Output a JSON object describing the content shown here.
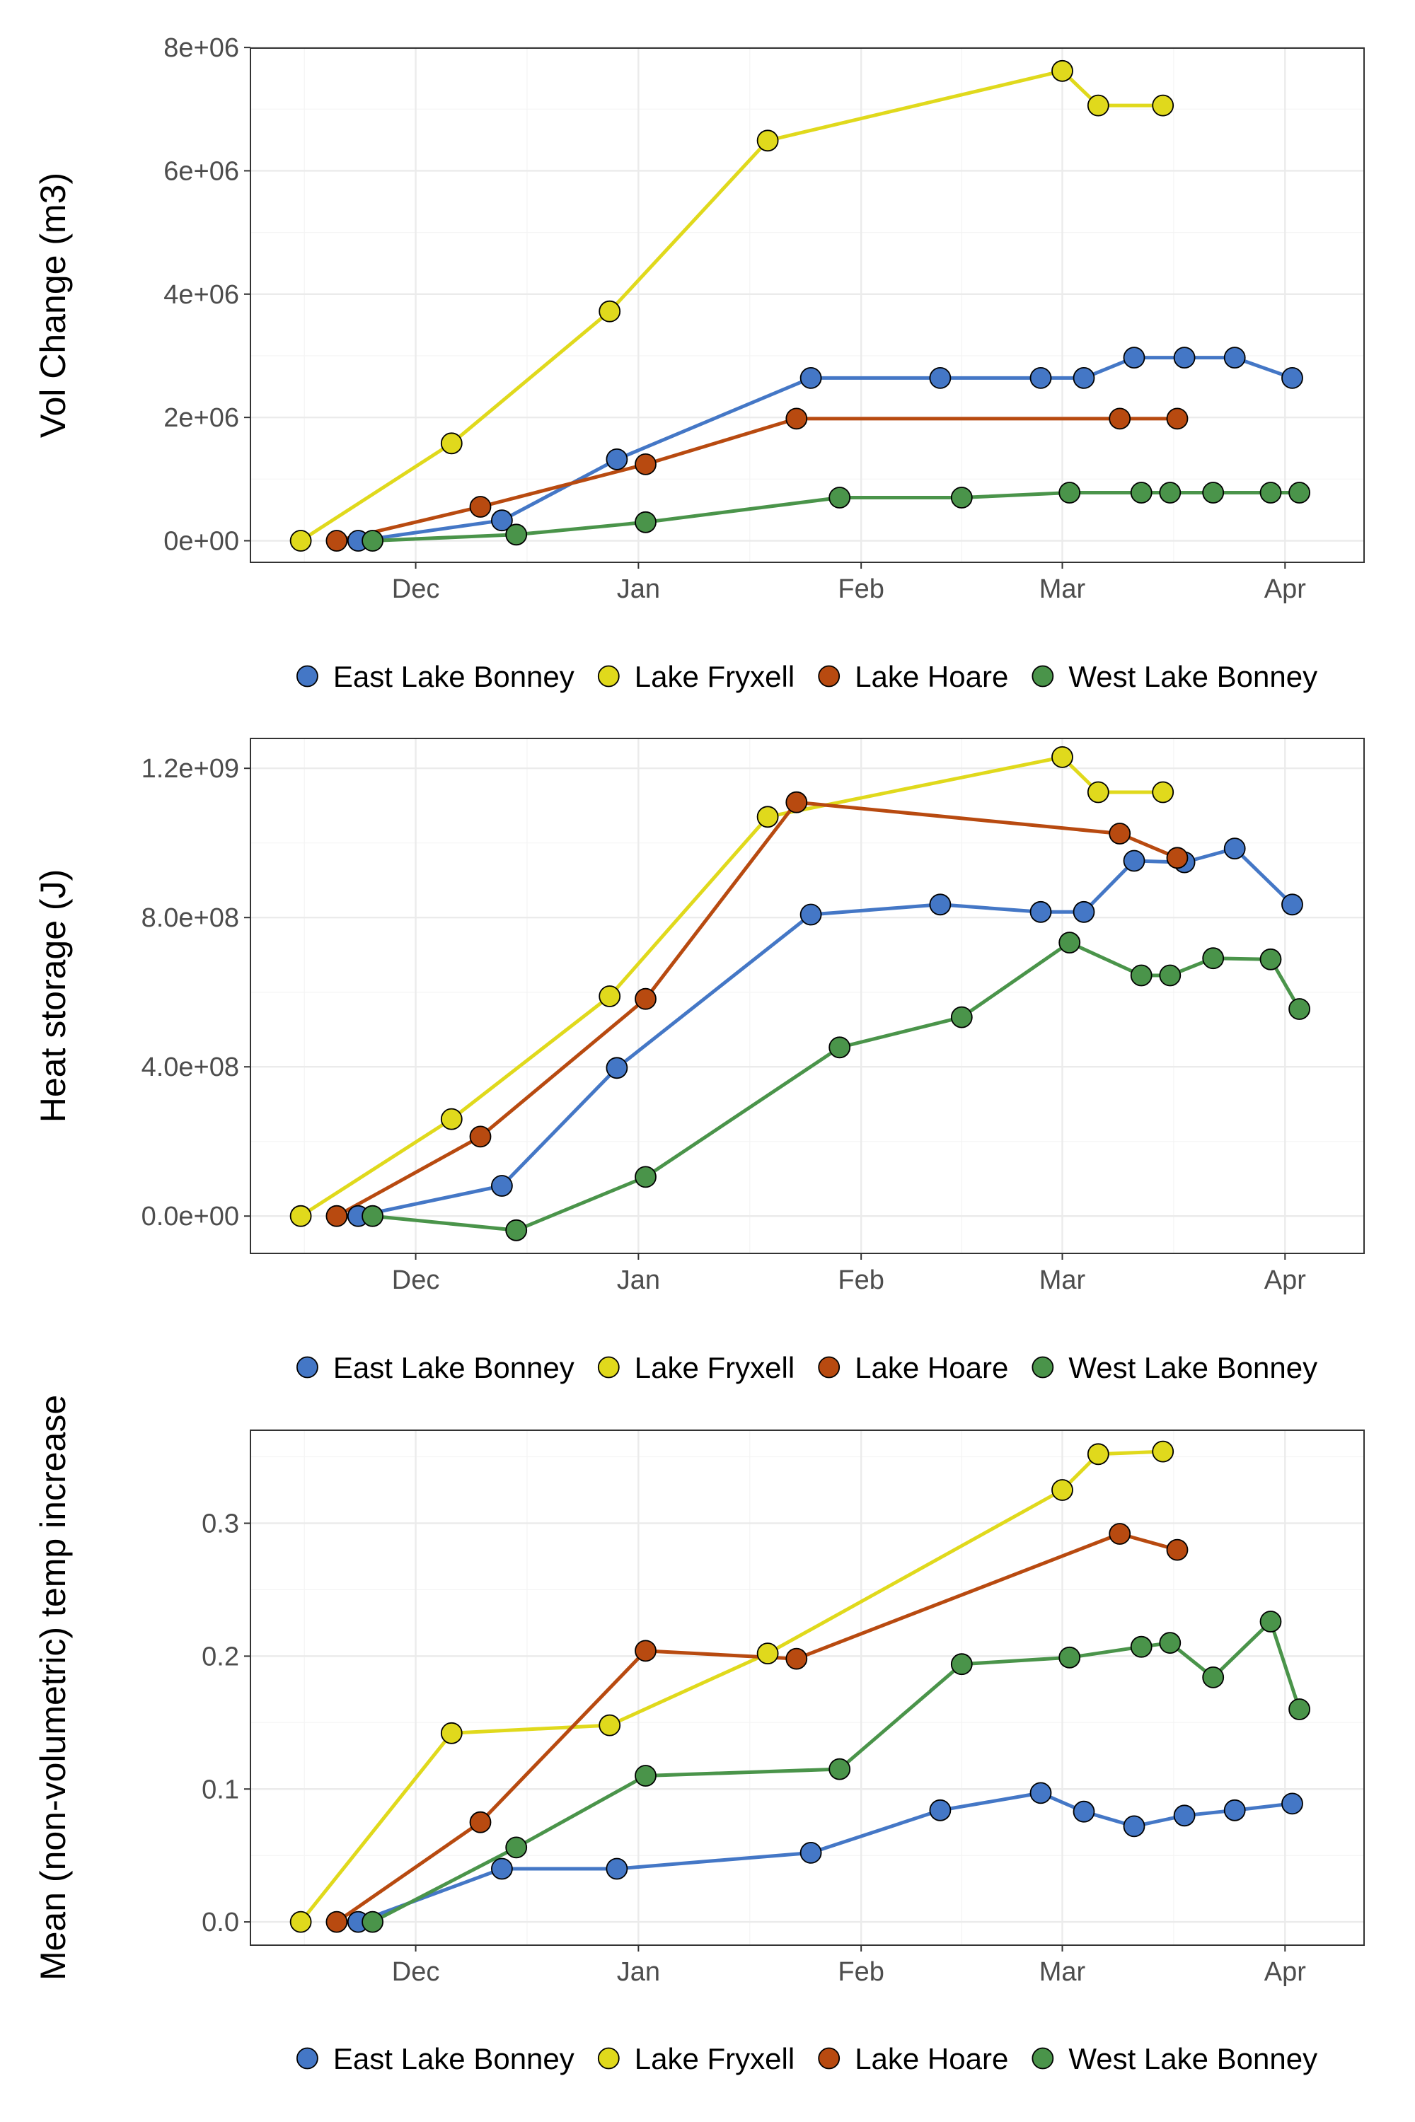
{
  "colors": {
    "East Lake Bonney": "#4477c6",
    "Lake Fryxell": "#e0d91c",
    "Lake Hoare": "#b84a10",
    "West Lake Bonney": "#4a944a"
  },
  "chart_data": [
    {
      "type": "line",
      "title": "",
      "ylabel": "Vol Change (m3)",
      "xlabel": "",
      "x_range": [
        "2021-11-08",
        "2022-04-12"
      ],
      "x_ticks": [
        {
          "date": "2021-12-01",
          "label": "Dec"
        },
        {
          "date": "2022-01-01",
          "label": "Jan"
        },
        {
          "date": "2022-02-01",
          "label": "Feb"
        },
        {
          "date": "2022-03-01",
          "label": "Mar"
        },
        {
          "date": "2022-04-01",
          "label": "Apr"
        }
      ],
      "ylim": [
        -350000,
        7990000
      ],
      "y_ticks": [
        {
          "value": 0,
          "label": "0e+00"
        },
        {
          "value": 2000000,
          "label": "2e+06"
        },
        {
          "value": 4000000,
          "label": "4e+06"
        },
        {
          "value": 6000000,
          "label": "6e+06"
        },
        {
          "value": 8000000,
          "label": "8e+06"
        }
      ],
      "grid": true,
      "legend_position": "bottom",
      "legend_entries": [
        "East Lake Bonney",
        "Lake Fryxell",
        "Lake Hoare",
        "West Lake Bonney"
      ],
      "series": [
        {
          "name": "East Lake Bonney",
          "points": [
            [
              "2021-11-23",
              0
            ],
            [
              "2021-12-13",
              330000
            ],
            [
              "2021-12-29",
              1320000
            ],
            [
              "2022-01-25",
              2640000
            ],
            [
              "2022-02-12",
              2640000
            ],
            [
              "2022-02-26",
              2640000
            ],
            [
              "2022-03-04",
              2640000
            ],
            [
              "2022-03-11",
              2970000
            ],
            [
              "2022-03-18",
              2970000
            ],
            [
              "2022-03-25",
              2970000
            ],
            [
              "2022-04-02",
              2640000
            ]
          ]
        },
        {
          "name": "Lake Fryxell",
          "points": [
            [
              "2021-11-15",
              0
            ],
            [
              "2021-12-06",
              1580000
            ],
            [
              "2021-12-28",
              3720000
            ],
            [
              "2022-01-19",
              6490000
            ],
            [
              "2022-03-01",
              7620000
            ],
            [
              "2022-03-06",
              7060000
            ],
            [
              "2022-03-15",
              7060000
            ]
          ]
        },
        {
          "name": "Lake Hoare",
          "points": [
            [
              "2021-11-20",
              0
            ],
            [
              "2021-12-10",
              550000
            ],
            [
              "2022-01-02",
              1240000
            ],
            [
              "2022-01-23",
              1980000
            ],
            [
              "2022-03-09",
              1980000
            ],
            [
              "2022-03-17",
              1980000
            ]
          ]
        },
        {
          "name": "West Lake Bonney",
          "points": [
            [
              "2021-11-25",
              0
            ],
            [
              "2021-12-15",
              100000
            ],
            [
              "2022-01-02",
              300000
            ],
            [
              "2022-01-29",
              700000
            ],
            [
              "2022-02-15",
              700000
            ],
            [
              "2022-03-02",
              780000
            ],
            [
              "2022-03-12",
              780000
            ],
            [
              "2022-03-16",
              780000
            ],
            [
              "2022-03-22",
              780000
            ],
            [
              "2022-03-30",
              780000
            ],
            [
              "2022-04-03",
              780000
            ]
          ]
        }
      ]
    },
    {
      "type": "line",
      "title": "",
      "ylabel": "Heat storage (J)",
      "xlabel": "",
      "x_range": [
        "2021-11-08",
        "2022-04-12"
      ],
      "x_ticks": [
        {
          "date": "2021-12-01",
          "label": "Dec"
        },
        {
          "date": "2022-01-01",
          "label": "Jan"
        },
        {
          "date": "2022-02-01",
          "label": "Feb"
        },
        {
          "date": "2022-03-01",
          "label": "Mar"
        },
        {
          "date": "2022-04-01",
          "label": "Apr"
        }
      ],
      "ylim": [
        -100000000,
        1280000000
      ],
      "y_ticks": [
        {
          "value": 0,
          "label": "0.0e+00"
        },
        {
          "value": 400000000,
          "label": "4.0e+08"
        },
        {
          "value": 800000000,
          "label": "8.0e+08"
        },
        {
          "value": 1200000000,
          "label": "1.2e+09"
        }
      ],
      "grid": true,
      "legend_position": "bottom",
      "legend_entries": [
        "East Lake Bonney",
        "Lake Fryxell",
        "Lake Hoare",
        "West Lake Bonney"
      ],
      "series": [
        {
          "name": "East Lake Bonney",
          "points": [
            [
              "2021-11-23",
              0
            ],
            [
              "2021-12-13",
              81000000
            ],
            [
              "2021-12-29",
              397000000
            ],
            [
              "2022-01-25",
              808000000
            ],
            [
              "2022-02-12",
              835000000
            ],
            [
              "2022-02-26",
              815000000
            ],
            [
              "2022-03-04",
              815000000
            ],
            [
              "2022-03-11",
              952000000
            ],
            [
              "2022-03-18",
              948000000
            ],
            [
              "2022-03-25",
              985000000
            ],
            [
              "2022-04-02",
              835000000
            ]
          ]
        },
        {
          "name": "Lake Fryxell",
          "points": [
            [
              "2021-11-15",
              0
            ],
            [
              "2021-12-06",
              260000000
            ],
            [
              "2021-12-28",
              589000000
            ],
            [
              "2022-01-19",
              1070000000
            ],
            [
              "2022-03-01",
              1230000000
            ],
            [
              "2022-03-06",
              1136000000
            ],
            [
              "2022-03-15",
              1136000000
            ]
          ]
        },
        {
          "name": "Lake Hoare",
          "points": [
            [
              "2021-11-20",
              0
            ],
            [
              "2021-12-10",
              213000000
            ],
            [
              "2022-01-02",
              582000000
            ],
            [
              "2022-01-23",
              1109000000
            ],
            [
              "2022-03-09",
              1025000000
            ],
            [
              "2022-03-17",
              960000000
            ]
          ]
        },
        {
          "name": "West Lake Bonney",
          "points": [
            [
              "2021-11-25",
              0
            ],
            [
              "2021-12-15",
              -38000000
            ],
            [
              "2022-01-02",
              105000000
            ],
            [
              "2022-01-29",
              452000000
            ],
            [
              "2022-02-15",
              533000000
            ],
            [
              "2022-03-02",
              733000000
            ],
            [
              "2022-03-12",
              645000000
            ],
            [
              "2022-03-16",
              645000000
            ],
            [
              "2022-03-22",
              691000000
            ],
            [
              "2022-03-30",
              688000000
            ],
            [
              "2022-04-03",
              555000000
            ]
          ]
        }
      ]
    },
    {
      "type": "line",
      "title": "",
      "ylabel": "Mean (non-volumetric) temp increase",
      "xlabel": "",
      "x_range": [
        "2021-11-08",
        "2022-04-12"
      ],
      "x_ticks": [
        {
          "date": "2021-12-01",
          "label": "Dec"
        },
        {
          "date": "2022-01-01",
          "label": "Jan"
        },
        {
          "date": "2022-02-01",
          "label": "Feb"
        },
        {
          "date": "2022-03-01",
          "label": "Mar"
        },
        {
          "date": "2022-04-01",
          "label": "Apr"
        }
      ],
      "ylim": [
        -0.0175,
        0.37
      ],
      "y_ticks": [
        {
          "value": 0,
          "label": "0.0"
        },
        {
          "value": 0.1,
          "label": "0.1"
        },
        {
          "value": 0.2,
          "label": "0.2"
        },
        {
          "value": 0.3,
          "label": "0.3"
        }
      ],
      "grid": true,
      "legend_position": "bottom",
      "legend_entries": [
        "East Lake Bonney",
        "Lake Fryxell",
        "Lake Hoare",
        "West Lake Bonney"
      ],
      "series": [
        {
          "name": "East Lake Bonney",
          "points": [
            [
              "2021-11-23",
              0
            ],
            [
              "2021-12-13",
              0.04
            ],
            [
              "2021-12-29",
              0.04
            ],
            [
              "2022-01-25",
              0.052
            ],
            [
              "2022-02-12",
              0.084
            ],
            [
              "2022-02-26",
              0.097
            ],
            [
              "2022-03-04",
              0.083
            ],
            [
              "2022-03-11",
              0.072
            ],
            [
              "2022-03-18",
              0.08
            ],
            [
              "2022-03-25",
              0.084
            ],
            [
              "2022-04-02",
              0.089
            ]
          ]
        },
        {
          "name": "Lake Fryxell",
          "points": [
            [
              "2021-11-15",
              0
            ],
            [
              "2021-12-06",
              0.142
            ],
            [
              "2021-12-28",
              0.148
            ],
            [
              "2022-01-19",
              0.202
            ],
            [
              "2022-03-01",
              0.325
            ],
            [
              "2022-03-06",
              0.352
            ],
            [
              "2022-03-15",
              0.354
            ]
          ]
        },
        {
          "name": "Lake Hoare",
          "points": [
            [
              "2021-11-20",
              0
            ],
            [
              "2021-12-10",
              0.075
            ],
            [
              "2022-01-02",
              0.204
            ],
            [
              "2022-01-23",
              0.198
            ],
            [
              "2022-03-09",
              0.292
            ],
            [
              "2022-03-17",
              0.28
            ]
          ]
        },
        {
          "name": "West Lake Bonney",
          "points": [
            [
              "2021-11-25",
              0
            ],
            [
              "2021-12-15",
              0.056
            ],
            [
              "2022-01-02",
              0.11
            ],
            [
              "2022-01-29",
              0.115
            ],
            [
              "2022-02-15",
              0.194
            ],
            [
              "2022-03-02",
              0.199
            ],
            [
              "2022-03-12",
              0.207
            ],
            [
              "2022-03-16",
              0.21
            ],
            [
              "2022-03-22",
              0.184
            ],
            [
              "2022-03-30",
              0.226
            ],
            [
              "2022-04-03",
              0.16
            ]
          ]
        }
      ]
    }
  ]
}
